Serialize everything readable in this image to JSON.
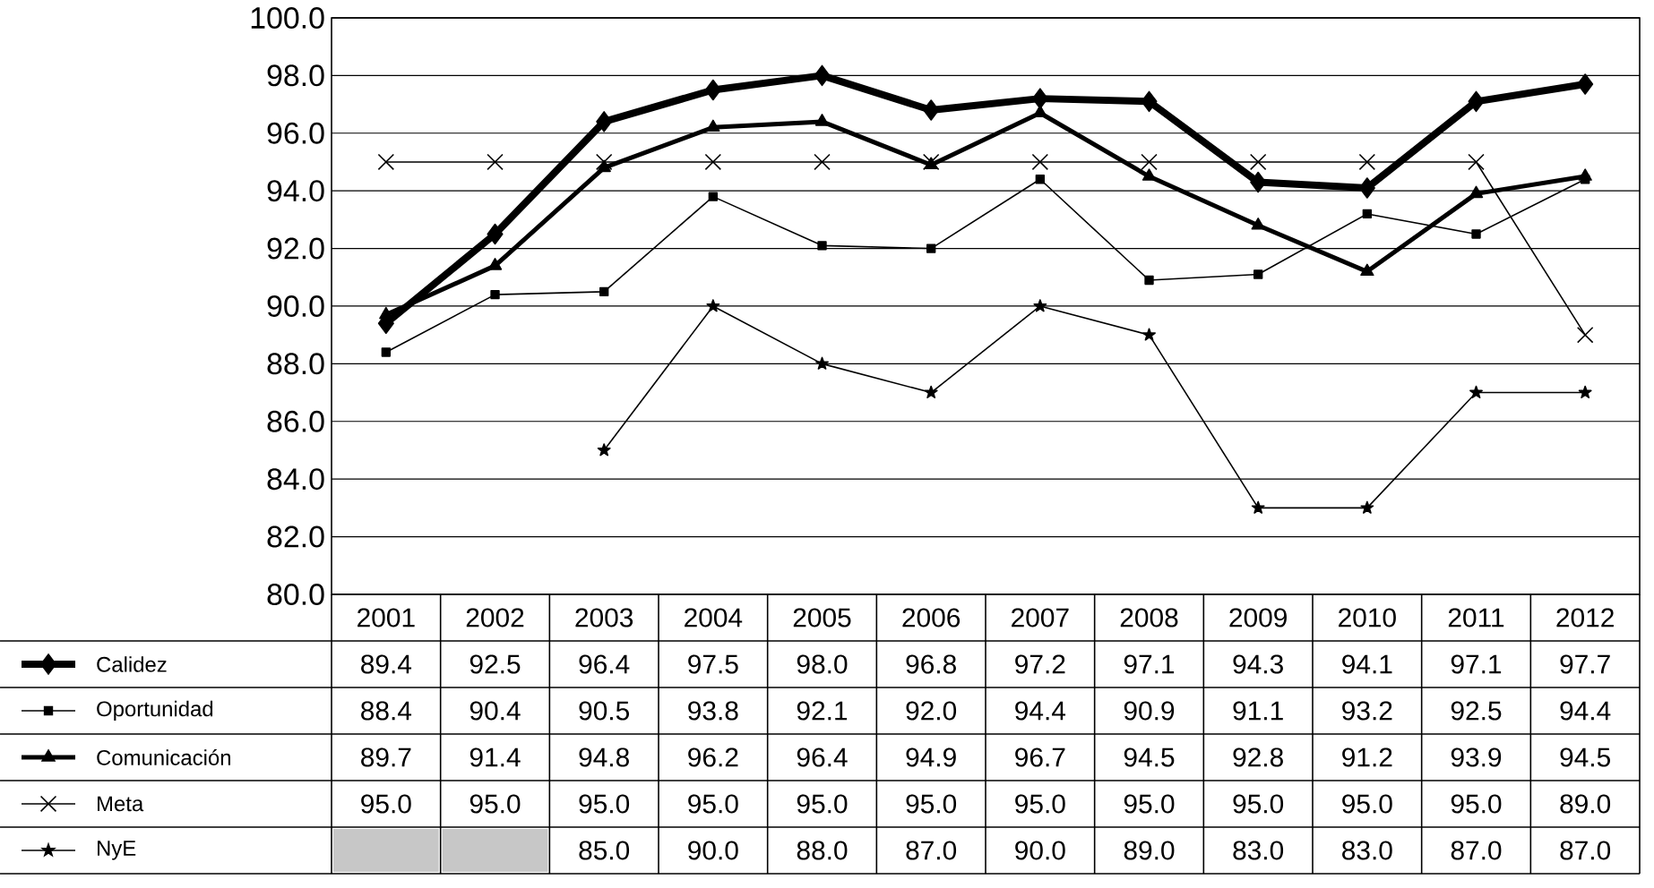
{
  "chart_data": {
    "type": "line",
    "categories": [
      "2001",
      "2002",
      "2003",
      "2004",
      "2005",
      "2006",
      "2007",
      "2008",
      "2009",
      "2010",
      "2011",
      "2012"
    ],
    "series": [
      {
        "name": "Calidez",
        "color": "#000000",
        "marker": "diamond",
        "values": [
          89.4,
          92.5,
          96.4,
          97.5,
          98.0,
          96.8,
          97.2,
          97.1,
          94.3,
          94.1,
          97.1,
          97.7
        ],
        "value_labels": [
          "89.4",
          "92.5",
          "96.4",
          "97.5",
          "98.0",
          "96.8",
          "97.2",
          "97.1",
          "94.3",
          "94.1",
          "97.1",
          "97.7"
        ]
      },
      {
        "name": "Oportunidad",
        "color": "#000000",
        "marker": "square",
        "values": [
          88.4,
          90.4,
          90.5,
          93.8,
          92.1,
          92.0,
          94.4,
          90.9,
          91.1,
          93.2,
          92.5,
          94.4
        ],
        "value_labels": [
          "88.4",
          "90.4",
          "90.5",
          "93.8",
          "92.1",
          "92.0",
          "94.4",
          "90.9",
          "91.1",
          "93.2",
          "92.5",
          "94.4"
        ]
      },
      {
        "name": "Comunicación",
        "color": "#000000",
        "marker": "triangle",
        "values": [
          89.7,
          91.4,
          94.8,
          96.2,
          96.4,
          94.9,
          96.7,
          94.5,
          92.8,
          91.2,
          93.9,
          94.5
        ],
        "value_labels": [
          "89.7",
          "91.4",
          "94.8",
          "96.2",
          "96.4",
          "94.9",
          "96.7",
          "94.5",
          "92.8",
          "91.2",
          "93.9",
          "94.5"
        ]
      },
      {
        "name": "Meta",
        "color": "#000000",
        "marker": "cross",
        "values": [
          95.0,
          95.0,
          95.0,
          95.0,
          95.0,
          95.0,
          95.0,
          95.0,
          95.0,
          95.0,
          95.0,
          89.0
        ],
        "value_labels": [
          "95.0",
          "95.0",
          "95.0",
          "95.0",
          "95.0",
          "95.0",
          "95.0",
          "95.0",
          "95.0",
          "95.0",
          "95.0",
          "89.0"
        ]
      },
      {
        "name": "NyE",
        "color": "#000000",
        "marker": "star",
        "values": [
          null,
          null,
          85.0,
          90.0,
          88.0,
          87.0,
          90.0,
          89.0,
          83.0,
          83.0,
          87.0,
          87.0
        ],
        "value_labels": [
          null,
          null,
          "85.0",
          "90.0",
          "88.0",
          "87.0",
          "90.0",
          "89.0",
          "83.0",
          "83.0",
          "87.0",
          "87.0"
        ]
      }
    ],
    "ylim": [
      80,
      100
    ],
    "yticks": [
      {
        "value": 80,
        "label": "80.0"
      },
      {
        "value": 82,
        "label": "82.0"
      },
      {
        "value": 84,
        "label": "84.0"
      },
      {
        "value": 86,
        "label": "86.0"
      },
      {
        "value": 88,
        "label": "88.0"
      },
      {
        "value": 90,
        "label": "90.0"
      },
      {
        "value": 92,
        "label": "92.0"
      },
      {
        "value": 94,
        "label": "94.0"
      },
      {
        "value": 96,
        "label": "96.0"
      },
      {
        "value": 98,
        "label": "98.0"
      },
      {
        "value": 100,
        "label": "100.0"
      }
    ],
    "grid": "y",
    "legend": "bottom left",
    "line_style": "solid"
  }
}
